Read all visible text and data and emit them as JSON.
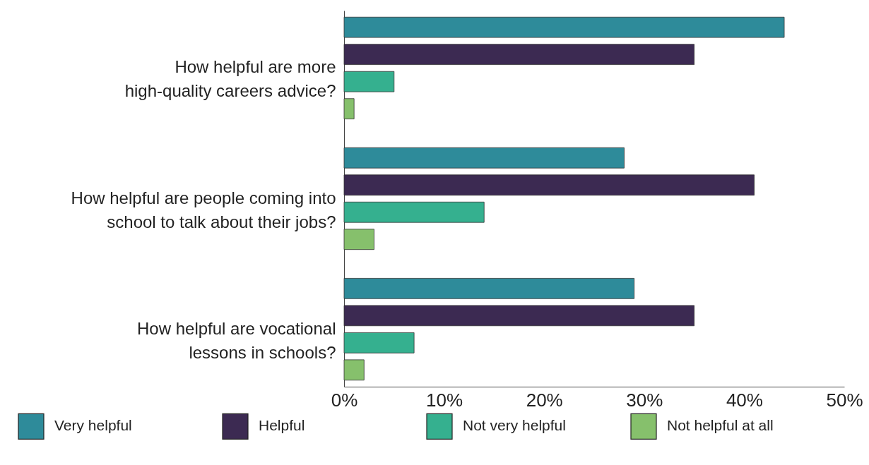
{
  "chart_data": {
    "type": "bar",
    "orientation": "horizontal",
    "categories": [
      "How helpful are more high-quality careers advice?",
      "How helpful are people coming into school to talk about their jobs?",
      "How helpful are vocational lessons in schools?"
    ],
    "series": [
      {
        "name": "Very helpful",
        "color": "#2e8b9a",
        "values": [
          44,
          28,
          29
        ]
      },
      {
        "name": "Helpful",
        "color": "#3c2a52",
        "values": [
          35,
          41,
          35
        ]
      },
      {
        "name": "Not very helpful",
        "color": "#35b08f",
        "values": [
          5,
          14,
          7
        ]
      },
      {
        "name": "Not helpful at all",
        "color": "#86c06c",
        "values": [
          1,
          3,
          2
        ]
      }
    ],
    "xlim": [
      0,
      50
    ],
    "xticks": [
      {
        "value": 0,
        "label": "0%"
      },
      {
        "value": 10,
        "label": "10%"
      },
      {
        "value": 20,
        "label": "20%"
      },
      {
        "value": 30,
        "label": "30%"
      },
      {
        "value": 40,
        "label": "40%"
      },
      {
        "value": 50,
        "label": "50%"
      }
    ],
    "grid": false,
    "legend": "bottom"
  }
}
